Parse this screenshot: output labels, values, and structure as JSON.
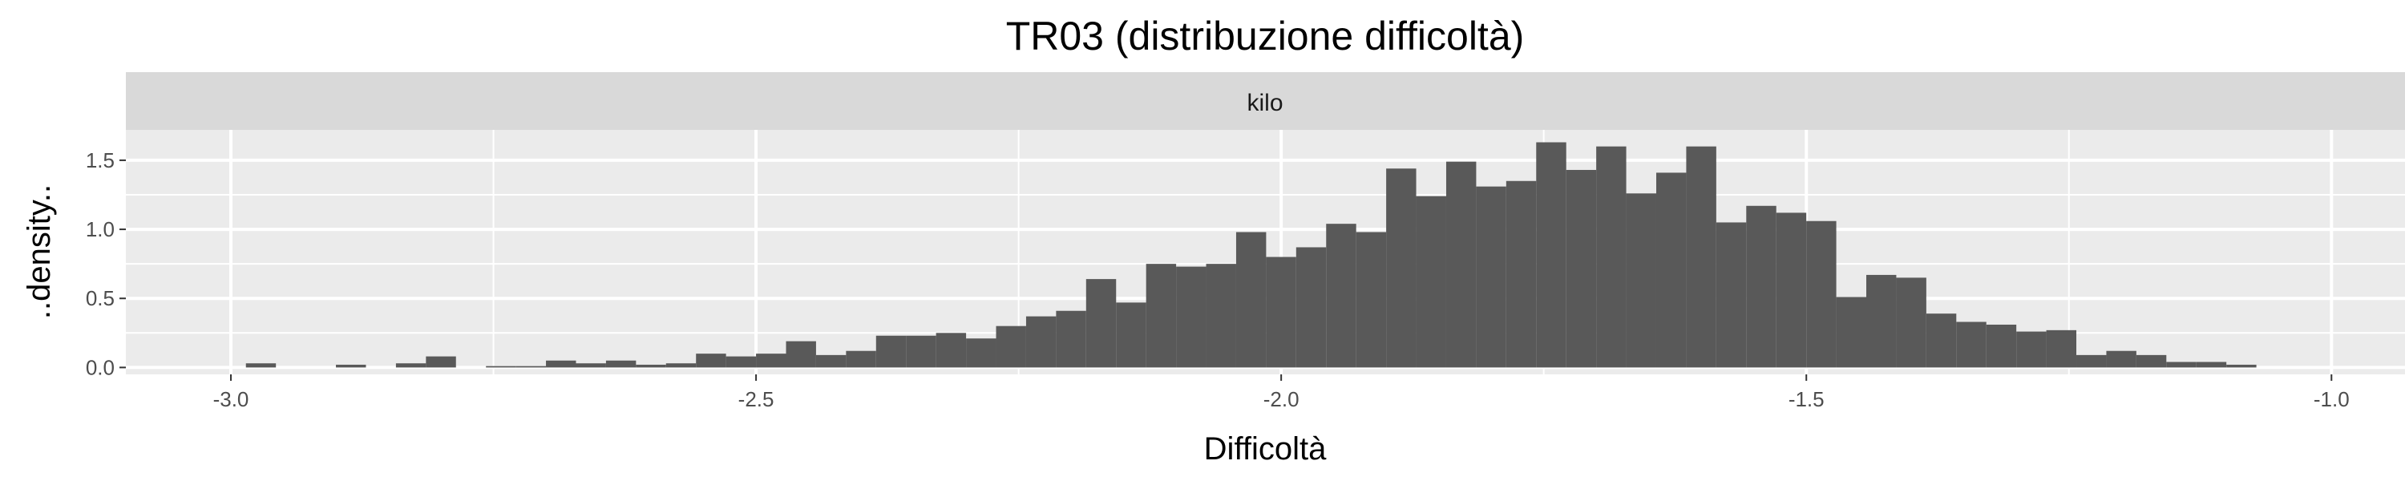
{
  "chart_data": {
    "type": "bar",
    "title": "TR03 (distribuzione difficoltà)",
    "facet_label": "kilo",
    "xlabel": "Difficoltà",
    "ylabel": "..density..",
    "xlim": [
      -3.1,
      -0.93
    ],
    "ylim": [
      -0.05,
      1.72
    ],
    "x_ticks": [
      -3.0,
      -2.5,
      -2.0,
      -1.5,
      -1.0
    ],
    "x_tick_labels": [
      "-3.0",
      "-2.5",
      "-2.0",
      "-1.5",
      "-1.0"
    ],
    "y_ticks": [
      0.0,
      0.5,
      1.0,
      1.5
    ],
    "y_tick_labels": [
      "0.0",
      "0.5",
      "1.0",
      "1.5"
    ],
    "grid": true,
    "bar_color": "#595959",
    "panel_color": "#ebebeb",
    "strip_color": "#d9d9d9",
    "bin_width": 0.02857,
    "bin_start": -2.9857,
    "values": [
      0.03,
      0.0,
      0.0,
      0.02,
      0.0,
      0.03,
      0.08,
      0.0,
      0.01,
      0.01,
      0.05,
      0.03,
      0.05,
      0.02,
      0.03,
      0.1,
      0.08,
      0.1,
      0.19,
      0.09,
      0.12,
      0.23,
      0.23,
      0.25,
      0.21,
      0.3,
      0.37,
      0.41,
      0.64,
      0.47,
      0.75,
      0.73,
      0.75,
      0.98,
      0.8,
      0.87,
      1.04,
      0.98,
      1.44,
      1.24,
      1.49,
      1.31,
      1.35,
      1.63,
      1.43,
      1.6,
      1.26,
      1.41,
      1.6,
      1.05,
      1.17,
      1.12,
      1.06,
      0.51,
      0.67,
      0.65,
      0.39,
      0.33,
      0.31,
      0.26,
      0.27,
      0.09,
      0.12,
      0.09,
      0.04,
      0.04,
      0.02
    ]
  }
}
